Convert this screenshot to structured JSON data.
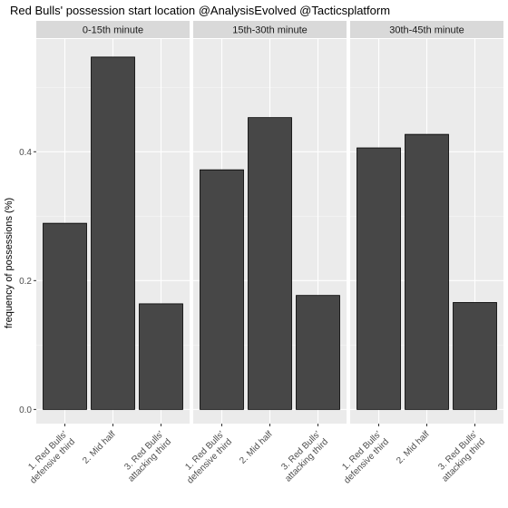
{
  "chart_data": {
    "type": "bar",
    "title": "Red Bulls' possession start location @AnalysisEvolved @Tacticsplatform",
    "ylabel": "frequency of possessions (%)",
    "xlabel": "",
    "ylim": [
      -0.022,
      0.575
    ],
    "yticks": [
      0.0,
      0.2,
      0.4
    ],
    "ytick_labels": [
      "0.0",
      "0.2",
      "0.4"
    ],
    "categories": [
      [
        "1. Red Bulls'",
        "defensive third"
      ],
      [
        "2. Mid half"
      ],
      [
        "3. Red Bulls'",
        "attacking third"
      ]
    ],
    "panels": [
      {
        "label": "0-15th minute",
        "values": [
          0.289,
          0.547,
          0.164
        ]
      },
      {
        "label": "15th-30th minute",
        "values": [
          0.372,
          0.453,
          0.177
        ]
      },
      {
        "label": "30th-45th minute",
        "values": [
          0.406,
          0.427,
          0.166
        ]
      }
    ],
    "colors": {
      "panel_background": "#EBEBEB",
      "strip_background": "#D9D9D9",
      "grid_major": "#FFFFFF",
      "bar_fill": "#474747",
      "bar_outline": "#000000"
    }
  }
}
